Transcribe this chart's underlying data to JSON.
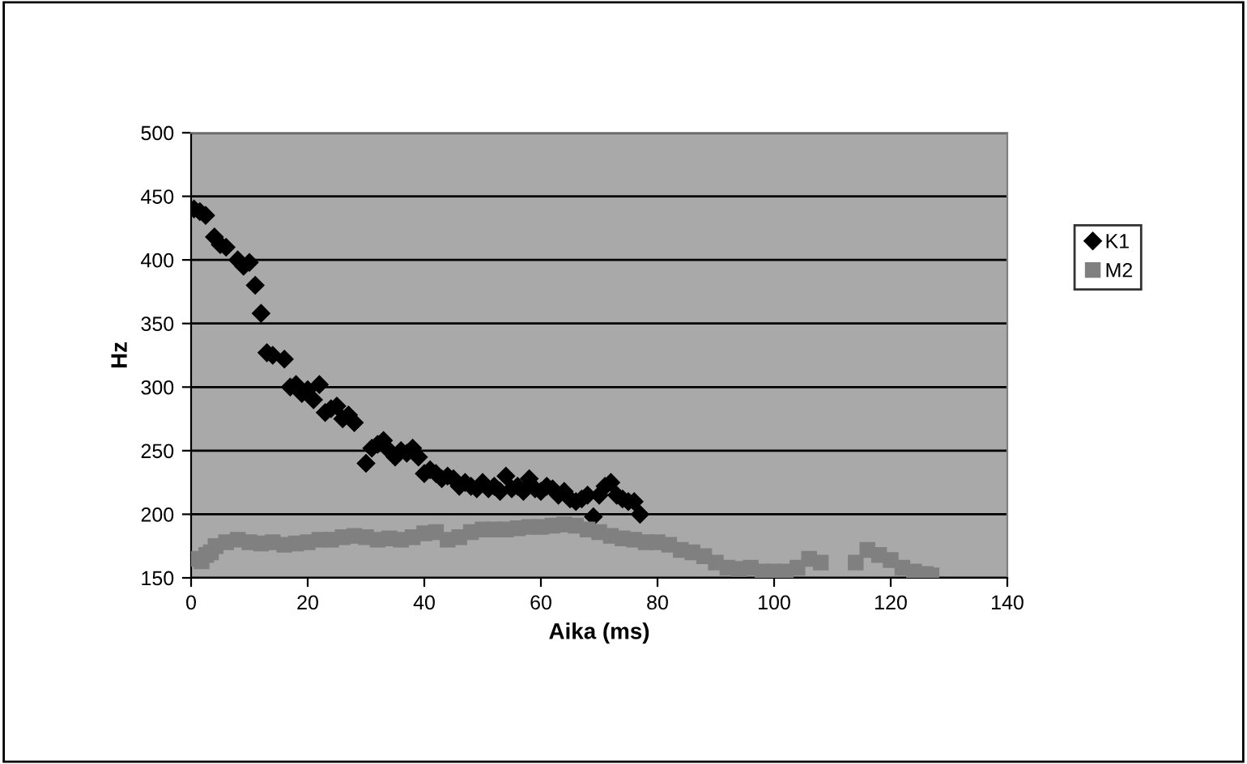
{
  "chart_data": {
    "type": "scatter",
    "xlabel": "Aika (ms)",
    "ylabel": "Hz",
    "xlim": [
      0,
      140
    ],
    "xticks": [
      0,
      20,
      40,
      60,
      80,
      100,
      120,
      140
    ],
    "ylim": [
      150,
      500
    ],
    "yticks": [
      150,
      200,
      250,
      300,
      350,
      400,
      450,
      500
    ],
    "grid": "y",
    "legend": "right",
    "series": [
      {
        "name": "K1",
        "color": "#000000",
        "marker": "diamond",
        "x": [
          0.5,
          1.5,
          2.5,
          4,
          5,
          6,
          8,
          9,
          10,
          11,
          12,
          13,
          14,
          16,
          17,
          18,
          19,
          20,
          21,
          22,
          23,
          24,
          25,
          26,
          27,
          28,
          30,
          31,
          32,
          33,
          34,
          35,
          36,
          37,
          38,
          39,
          40,
          41,
          42,
          43,
          44,
          45,
          46,
          47,
          48,
          49,
          50,
          51,
          52,
          53,
          54,
          55,
          56,
          57,
          58,
          59,
          60,
          61,
          62,
          63,
          64,
          65,
          66,
          67,
          68,
          69,
          70,
          71,
          72,
          73,
          74,
          75,
          76,
          77
        ],
        "values": [
          440,
          438,
          435,
          418,
          412,
          410,
          400,
          395,
          398,
          380,
          358,
          327,
          325,
          322,
          300,
          302,
          295,
          298,
          290,
          302,
          280,
          283,
          285,
          275,
          278,
          272,
          240,
          252,
          255,
          258,
          250,
          245,
          250,
          248,
          252,
          245,
          232,
          235,
          232,
          228,
          230,
          228,
          222,
          225,
          222,
          220,
          225,
          220,
          222,
          218,
          230,
          220,
          222,
          218,
          228,
          220,
          218,
          222,
          220,
          215,
          218,
          212,
          210,
          212,
          215,
          198,
          215,
          222,
          225,
          215,
          212,
          210,
          210,
          200
        ]
      },
      {
        "name": "M2",
        "color": "#808080",
        "marker": "square",
        "x": [
          0.8,
          1.8,
          2.6,
          3.4,
          4.2,
          6,
          8,
          10,
          12,
          14,
          16,
          18,
          20,
          22,
          24,
          26,
          28,
          30,
          32,
          34,
          36,
          38,
          40,
          42,
          44,
          46,
          48,
          50,
          52,
          54,
          56,
          58,
          60,
          62,
          64,
          66,
          68,
          70,
          72,
          74,
          76,
          78,
          80,
          82,
          84,
          86,
          88,
          90,
          92,
          94,
          96,
          98,
          100,
          102,
          104,
          106,
          108,
          114,
          116,
          118,
          120,
          122,
          124,
          126,
          127
        ],
        "values": [
          165,
          163,
          168,
          170,
          175,
          178,
          180,
          178,
          177,
          178,
          176,
          177,
          178,
          180,
          180,
          182,
          183,
          182,
          180,
          181,
          180,
          182,
          185,
          186,
          180,
          182,
          186,
          188,
          188,
          188,
          189,
          190,
          190,
          191,
          192,
          191,
          188,
          186,
          183,
          181,
          180,
          178,
          178,
          176,
          172,
          170,
          167,
          162,
          158,
          157,
          158,
          155,
          155,
          155,
          158,
          165,
          162,
          162,
          172,
          168,
          164,
          158,
          155,
          153,
          152
        ]
      }
    ]
  }
}
